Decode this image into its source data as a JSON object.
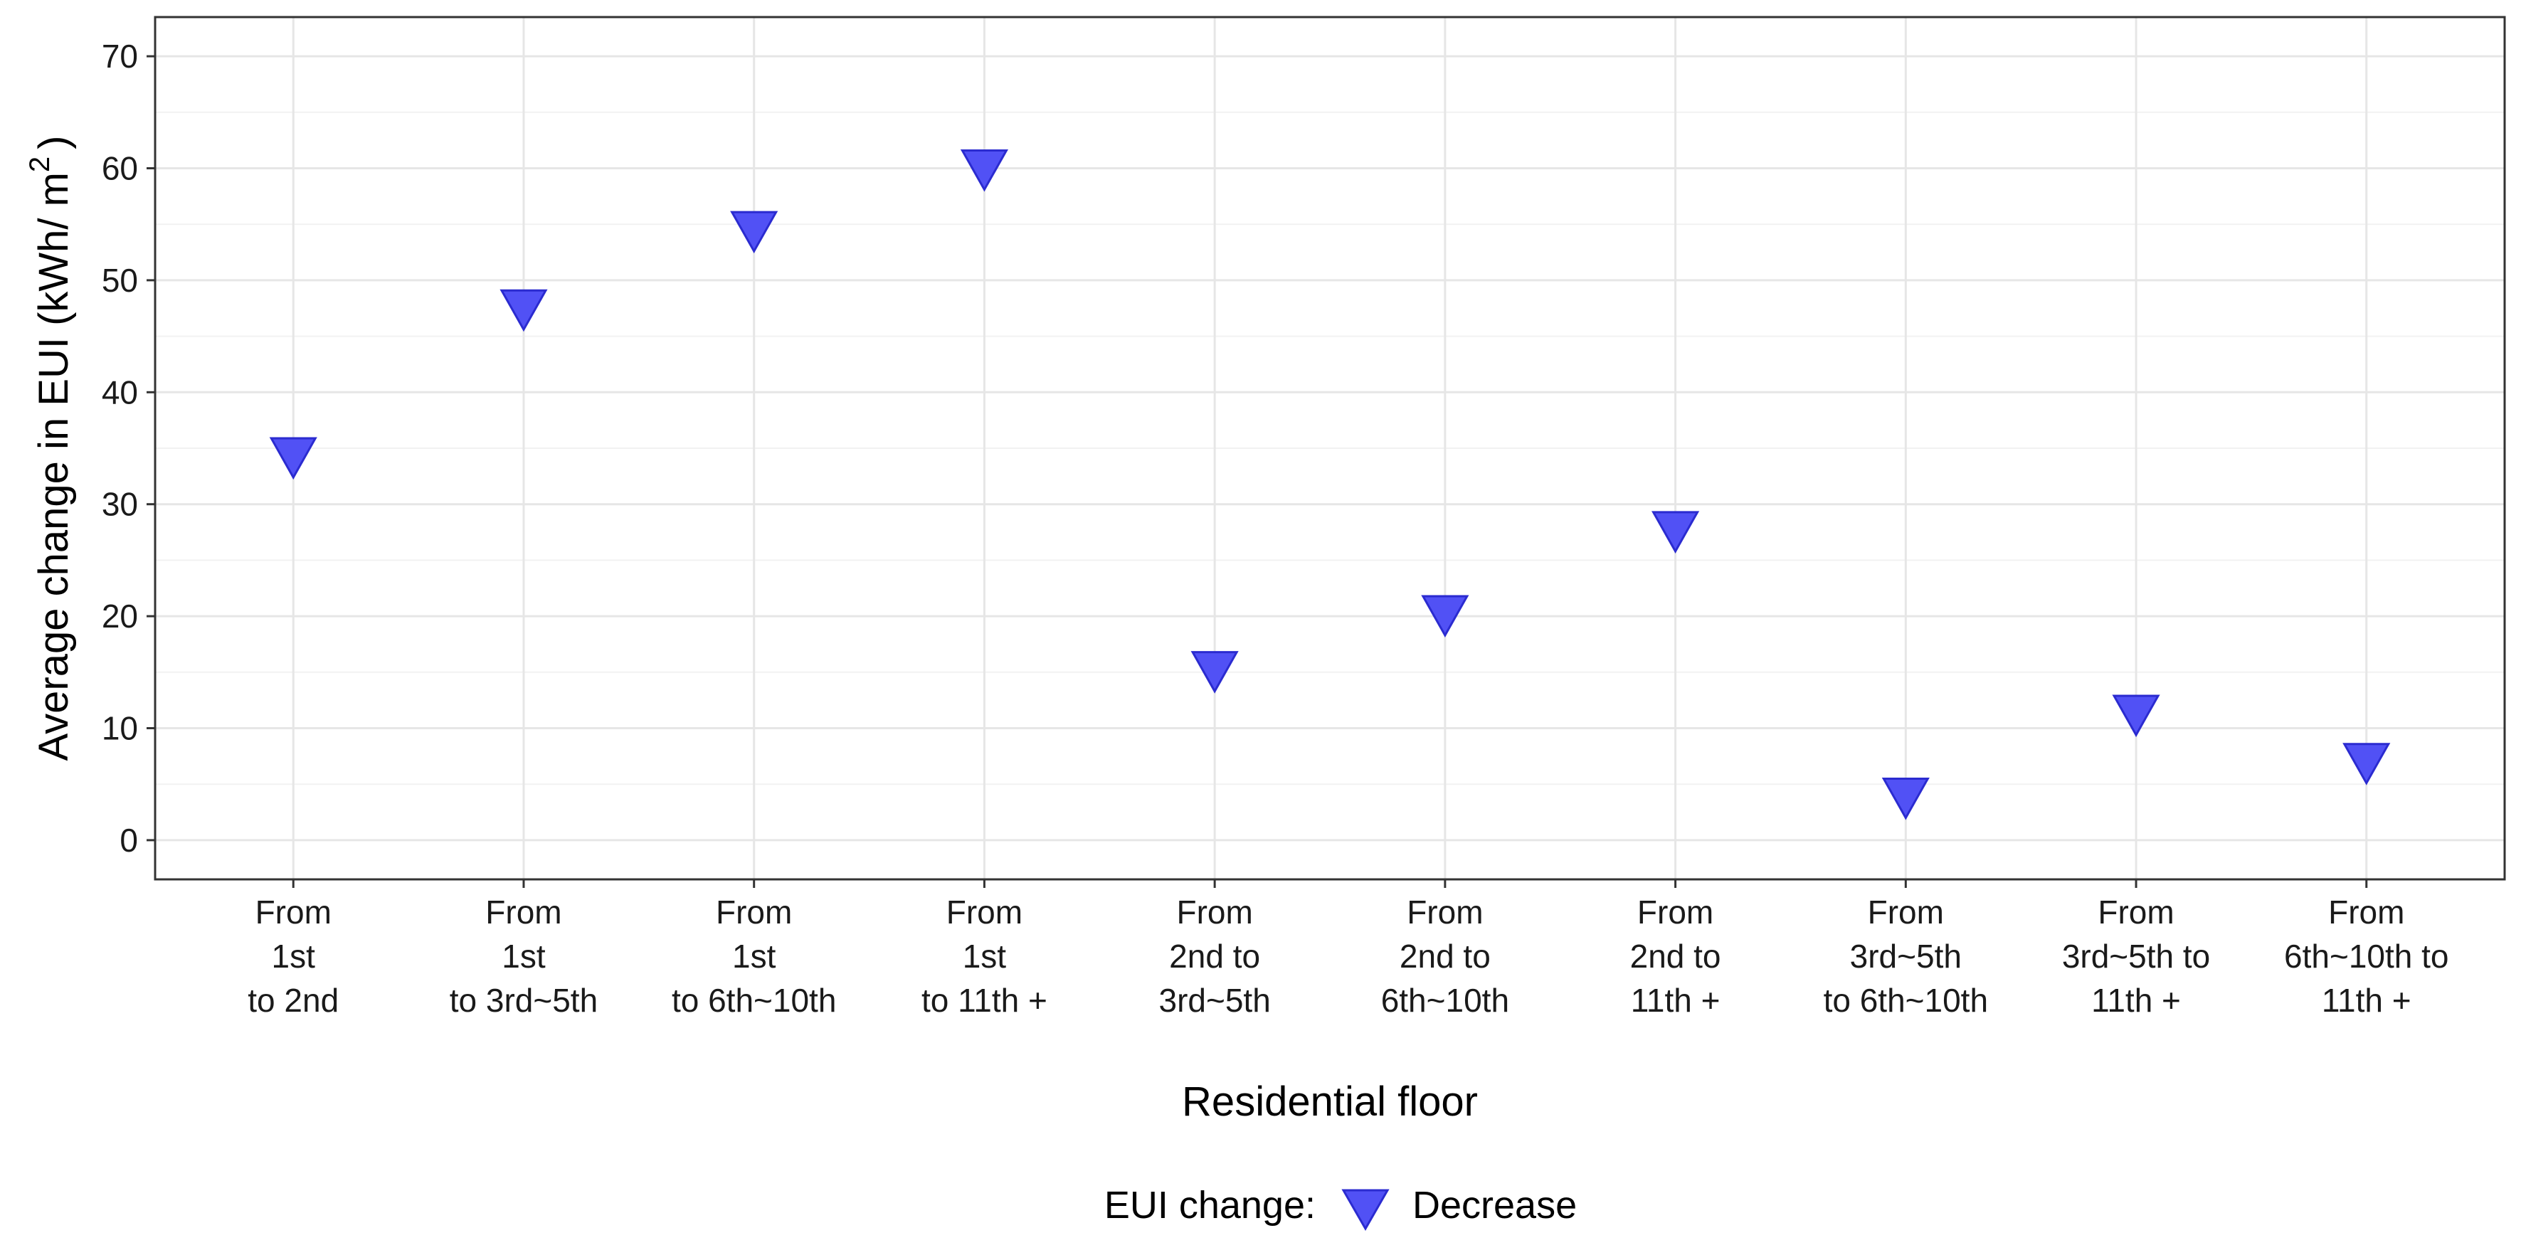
{
  "chart_data": {
    "type": "scatter",
    "title": "",
    "xlabel": "Residential floor",
    "ylabel": "Average change in EUI (kWh/ m",
    "ylabel_superscript": "2",
    "ylabel_suffix": ")",
    "ylim": [
      -3.5,
      73.5
    ],
    "y_ticks": [
      "0",
      "10",
      "20",
      "30",
      "40",
      "50",
      "60",
      "70"
    ],
    "grid": true,
    "categories": [
      [
        "From",
        "1st",
        "to 2nd"
      ],
      [
        "From",
        "1st",
        "to 3rd~5th"
      ],
      [
        "From",
        "1st",
        "to 6th~10th"
      ],
      [
        "From",
        "1st",
        "to 11th +"
      ],
      [
        "From",
        "2nd to",
        "3rd~5th"
      ],
      [
        "From",
        "2nd to",
        "6th~10th"
      ],
      [
        "From",
        "2nd to",
        "11th +"
      ],
      [
        "From",
        "3rd~5th",
        "to 6th~10th"
      ],
      [
        "From",
        "3rd~5th to",
        "11th +"
      ],
      [
        "From",
        "6th~10th to",
        "11th +"
      ]
    ],
    "series": [
      {
        "name": "Decrease",
        "marker": "triangle-down",
        "color": "#5151f5",
        "values": [
          34.3,
          47.5,
          54.5,
          60.0,
          15.2,
          20.2,
          27.7,
          3.9,
          11.3,
          7.0
        ]
      }
    ],
    "legend": {
      "title": "EUI change:",
      "placement": "bottom",
      "entries": [
        "Decrease"
      ]
    }
  },
  "colors": {
    "marker_fill": "#5151f5",
    "marker_stroke": "#2b2bd0",
    "grid_major": "#e6e6e6",
    "grid_minor": "#f2f2f2",
    "panel_border": "#333333"
  }
}
